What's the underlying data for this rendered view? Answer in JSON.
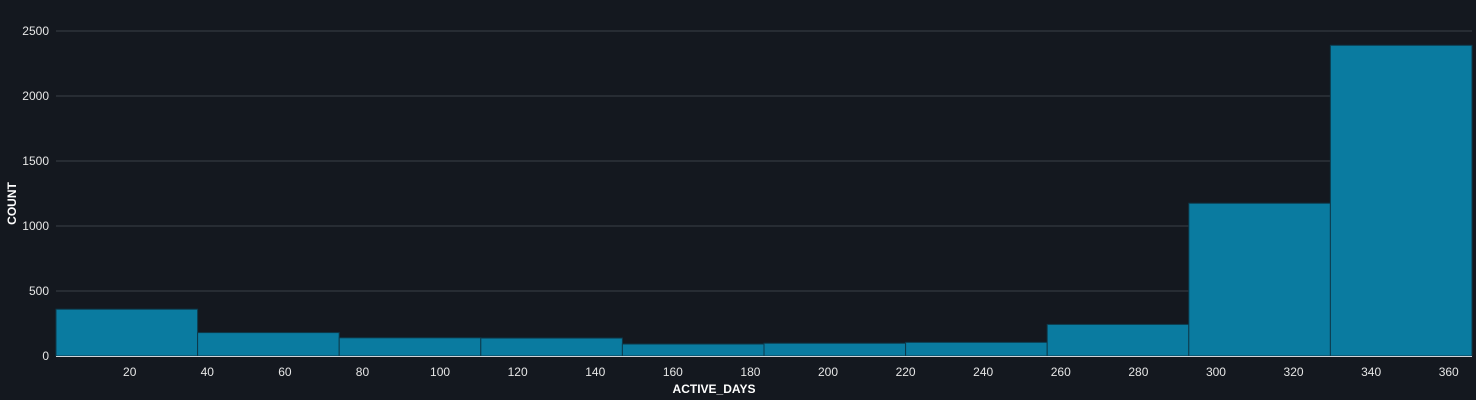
{
  "chart_data": {
    "type": "bar",
    "title": "",
    "xlabel": "ACTIVE_DAYS",
    "ylabel": "COUNT",
    "xlim": [
      1,
      366
    ],
    "ylim": [
      0,
      2500
    ],
    "x_ticks": [
      20,
      40,
      60,
      80,
      100,
      120,
      140,
      160,
      180,
      200,
      220,
      240,
      260,
      280,
      300,
      320,
      340,
      360
    ],
    "y_ticks": [
      0,
      500,
      1000,
      1500,
      2000,
      2500
    ],
    "bins": [
      {
        "x0": 1,
        "x1": 37.5,
        "value": 360
      },
      {
        "x0": 37.5,
        "x1": 74,
        "value": 180
      },
      {
        "x0": 74,
        "x1": 110.5,
        "value": 140
      },
      {
        "x0": 110.5,
        "x1": 147,
        "value": 138
      },
      {
        "x0": 147,
        "x1": 183.5,
        "value": 92
      },
      {
        "x0": 183.5,
        "x1": 220,
        "value": 98
      },
      {
        "x0": 220,
        "x1": 256.5,
        "value": 105
      },
      {
        "x0": 256.5,
        "x1": 293,
        "value": 243
      },
      {
        "x0": 293,
        "x1": 329.5,
        "value": 1175
      },
      {
        "x0": 329.5,
        "x1": 366,
        "value": 2390
      }
    ],
    "grid": true,
    "colors": {
      "background": "#14181f",
      "bar": "#0a7ba0",
      "bar_stroke": "#0d3a4b",
      "grid": "#3a3f47",
      "baseline": "#d0d4d9"
    }
  }
}
